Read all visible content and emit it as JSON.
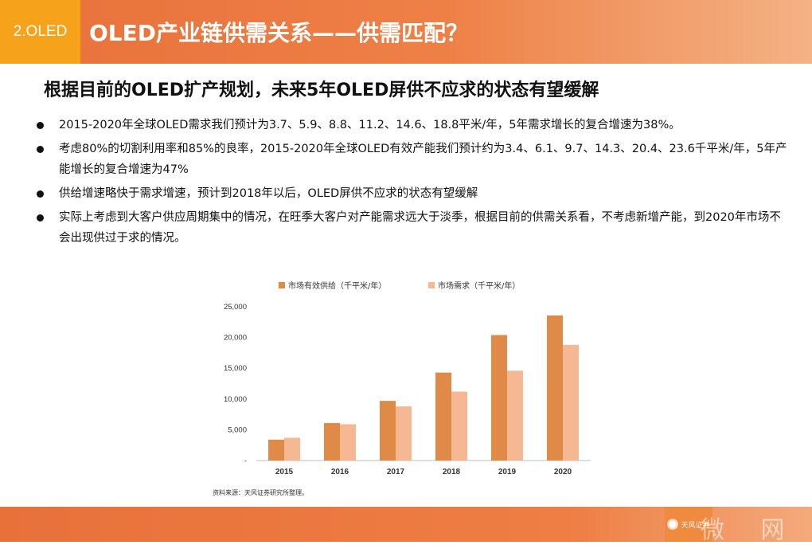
{
  "header": {
    "section_tag": "2.OLED",
    "title": "OLED产业链供需关系——供需匹配？"
  },
  "subtitle": "根据目前的OLED扩产规划，未来5年OLED屏供不应求的状态有望缓解",
  "bullets": [
    "2015-2020年全球OLED需求我们预计为3.7、5.9、8.8、11.2、14.6、18.8平米/年，5年需求增长的复合增速为38%。",
    "考虑80%的切割利用率和85%的良率，2015-2020年全球OLED有效产能我们预计约为3.4、6.1、9.7、14.3、20.4、23.6千平米/年，5年产能增长的复合增速为47%",
    "供给增速略快于需求增速，预计到2018年以后，OLED屏供不应求的状态有望缓解",
    "实际上考虑到大客户供应周期集中的情况，在旺季大客户对产能需求远大于淡季，根据目前的供需关系看，不考虑新增产能，到2020年市场不会出现供过于求的情况。"
  ],
  "chart_data": {
    "type": "bar",
    "categories": [
      "2015",
      "2016",
      "2017",
      "2018",
      "2019",
      "2020"
    ],
    "series": [
      {
        "name": "市场有效供给（千平米/年）",
        "color": "#e08a47",
        "values": [
          3400,
          6100,
          9700,
          14300,
          20400,
          23600
        ]
      },
      {
        "name": "市场需求（千平米/年）",
        "color": "#f6b893",
        "values": [
          3700,
          5900,
          8800,
          11200,
          14600,
          18800
        ]
      }
    ],
    "ylim": [
      0,
      25000
    ],
    "yticks": [
      0,
      5000,
      10000,
      15000,
      20000,
      25000
    ],
    "ytick_labels": [
      "-",
      "5,000",
      "10,000",
      "15,000",
      "20,000",
      "25,000"
    ],
    "legend_position": "top",
    "grid": false
  },
  "source": "资料来源：天风证券研究所整理。",
  "footer": {
    "logo_text": "天风证券",
    "watermark": "微 网"
  },
  "colors": {
    "header_orange": "#e8713a",
    "tag_yellow": "#f7a21b",
    "supply_bar": "#e08a47",
    "demand_bar": "#f6b893"
  }
}
